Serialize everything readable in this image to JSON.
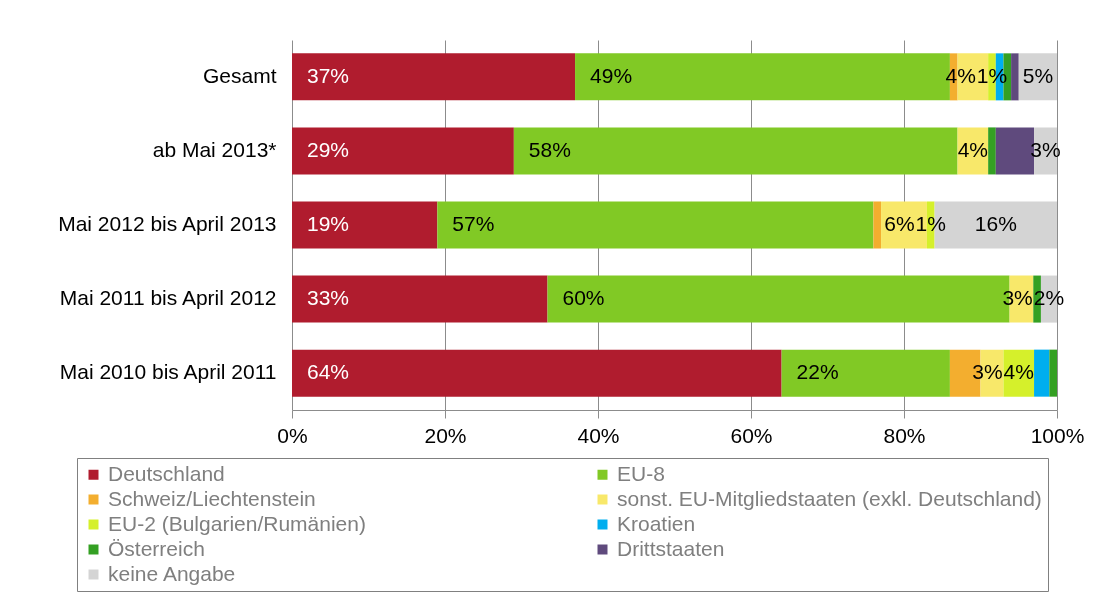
{
  "chart_data": {
    "type": "bar",
    "orientation": "horizontal",
    "stacked": true,
    "categories": [
      "Gesamt",
      "ab Mai 2013*",
      "Mai 2012 bis April 2013",
      "Mai 2011 bis April 2012",
      "Mai 2010 bis April 2011"
    ],
    "series": [
      {
        "name": "Deutschland",
        "color": "#b01c2e",
        "values": [
          37,
          29,
          19,
          33.4,
          64
        ],
        "value_labels": [
          "37%",
          "29%",
          "19%",
          "33%",
          "64%"
        ]
      },
      {
        "name": "EU-8",
        "color": "#81c925",
        "values": [
          49,
          58,
          57,
          60.4,
          22
        ],
        "value_labels": [
          "49%",
          "58%",
          "57%",
          "60%",
          "22%"
        ]
      },
      {
        "name": "Schweiz/Liechtenstein",
        "color": "#f3ae2f",
        "values": [
          1,
          null,
          1,
          null,
          4
        ]
      },
      {
        "name": "sonst. EU-Mitgliedstaaten (exkl. Deutschland)",
        "color": "#f8e86a",
        "values": [
          4,
          4,
          6,
          3.1,
          3
        ],
        "value_labels": [
          "4%",
          "4%",
          "6%",
          "3%",
          "3%"
        ]
      },
      {
        "name": "EU-2 (Bulgarien/Rumänien)",
        "color": "#d5f02b",
        "values": [
          1,
          null,
          1,
          null,
          4
        ],
        "value_labels": [
          "1%",
          null,
          "1%",
          null,
          "4%"
        ]
      },
      {
        "name": "Kroatien",
        "color": "#00aeef",
        "values": [
          1,
          null,
          null,
          null,
          2
        ]
      },
      {
        "name": "Österreich",
        "color": "#34a023",
        "values": [
          1,
          1,
          null,
          1,
          1
        ]
      },
      {
        "name": "Drittstaaten",
        "color": "#5f4a7d",
        "values": [
          1,
          5,
          null,
          null,
          null
        ]
      },
      {
        "name": "keine Angabe",
        "color": "#d4d4d4",
        "values": [
          5,
          3,
          16,
          2.1,
          null
        ],
        "value_labels": [
          "5%",
          "3%",
          "16%",
          "2%",
          null
        ]
      }
    ],
    "xlim": [
      0,
      100
    ],
    "xticks": [
      {
        "value": 0,
        "label": "0%"
      },
      {
        "value": 20,
        "label": "20%"
      },
      {
        "value": 40,
        "label": "40%"
      },
      {
        "value": 60,
        "label": "60%"
      },
      {
        "value": 80,
        "label": "80%"
      },
      {
        "value": 100,
        "label": "100%"
      }
    ],
    "grid": "x",
    "legend": "bottom"
  }
}
